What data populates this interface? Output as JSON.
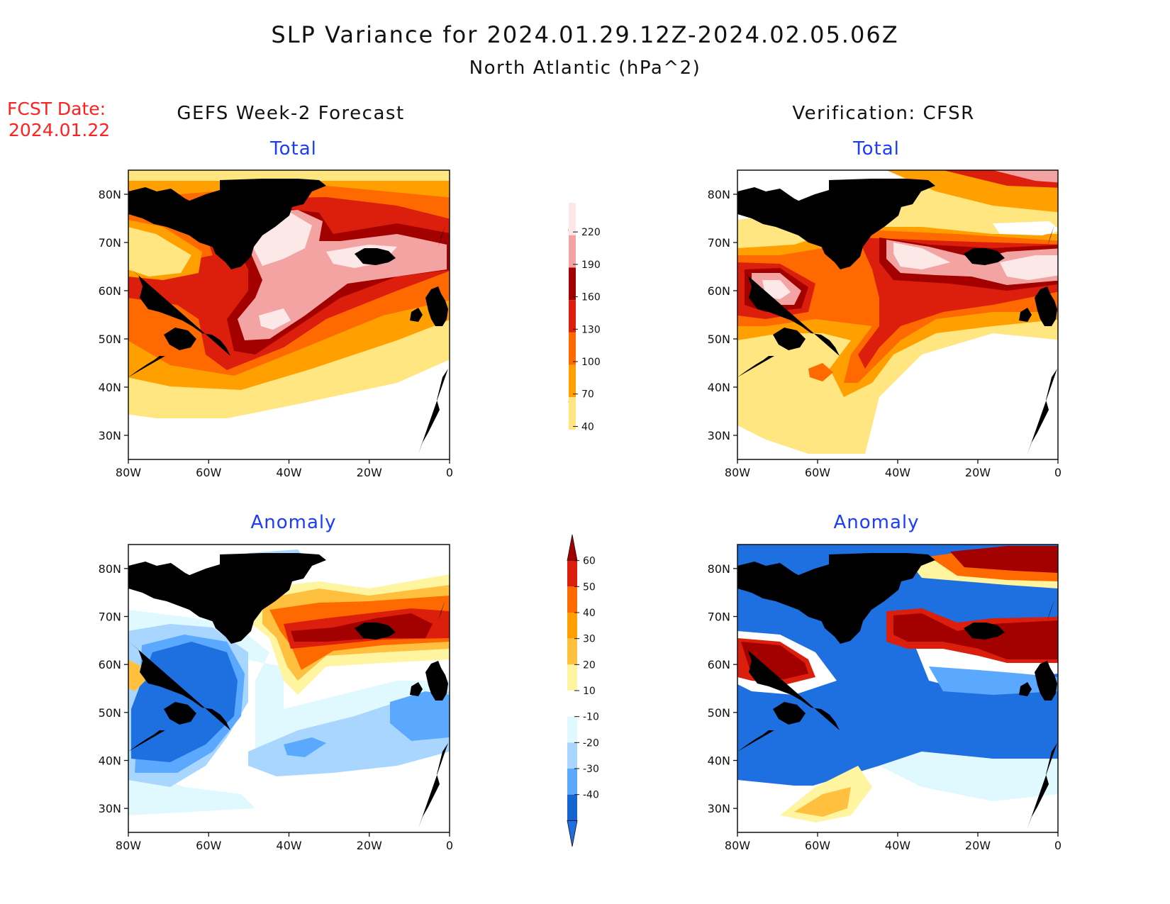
{
  "header": {
    "title": "SLP Variance for 2024.01.29.12Z-2024.02.05.06Z",
    "subtitle": "North Atlantic (hPa^2)",
    "fcst_label": "FCST Date:",
    "fcst_date": "2024.01.22"
  },
  "columns": {
    "left": "GEFS Week-2 Forecast",
    "right": "Verification: CFSR"
  },
  "panels": {
    "fc_total_title": "Total",
    "ver_total_title": "Total",
    "fc_anom_title": "Anomaly",
    "ver_anom_title": "Anomaly"
  },
  "axes": {
    "lat_labels": [
      "80N",
      "70N",
      "60N",
      "50N",
      "40N",
      "30N"
    ],
    "lat_values": [
      80,
      70,
      60,
      50,
      40,
      30
    ],
    "lon_labels": [
      "80W",
      "60W",
      "40W",
      "20W",
      "0"
    ],
    "lon_values": [
      -80,
      -60,
      -40,
      -20,
      0
    ],
    "lat_range": [
      25,
      85
    ],
    "lon_range": [
      -80,
      0
    ]
  },
  "colorbar_total": {
    "ticks": [
      "220",
      "190",
      "160",
      "130",
      "100",
      "70",
      "40"
    ],
    "colors": [
      "#fde8e8",
      "#f4a3a3",
      "#a30000",
      "#dc1e0c",
      "#ff6a00",
      "#ffa000",
      "#ffe680"
    ]
  },
  "colorbar_anomaly": {
    "ticks": [
      "60",
      "50",
      "40",
      "30",
      "20",
      "10",
      "-10",
      "-20",
      "-30",
      "-40"
    ],
    "colors": [
      "#a30000",
      "#dc1e0c",
      "#ff6a00",
      "#ffa000",
      "#ffc040",
      "#fff5a0",
      "#ffffff",
      "#e0f8ff",
      "#a8d6ff",
      "#5aa8ff",
      "#1464d2",
      "#1e6fe0"
    ]
  }
}
